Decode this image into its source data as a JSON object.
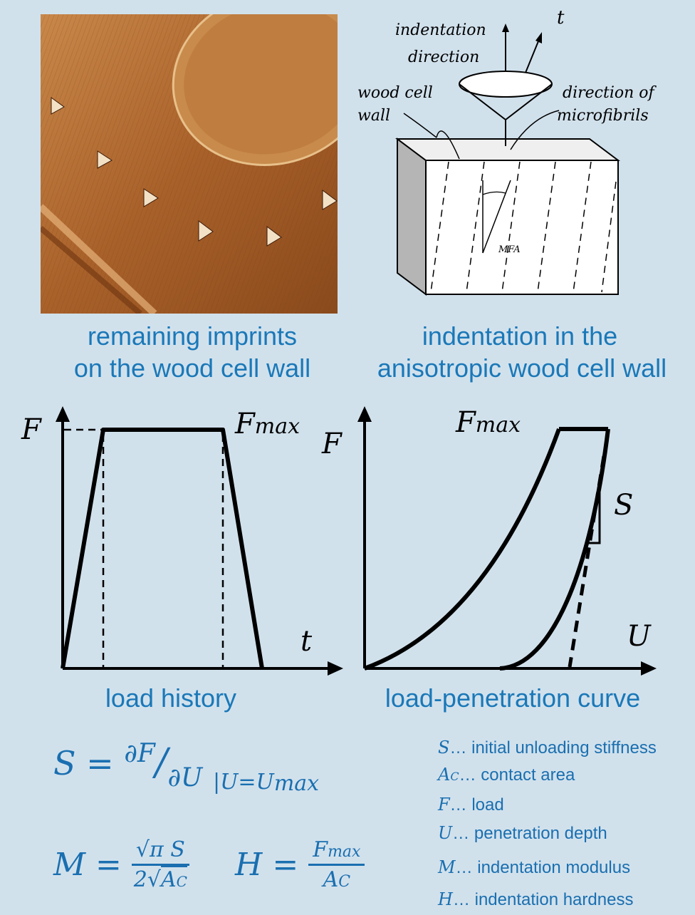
{
  "top_left": {
    "caption_line1": "remaining imprints",
    "caption_line2": "on the wood cell wall"
  },
  "top_right": {
    "label_indentation": "indentation",
    "label_direction": "direction",
    "label_t": "t",
    "label_wood_cell": "wood cell",
    "label_wall": "wall",
    "label_direction_of": "direction of",
    "label_microfibrils": "microfibrils",
    "label_mfa": "MFA",
    "caption_line1": "indentation in the",
    "caption_line2": "anisotropic wood cell wall"
  },
  "load_history": {
    "y_label": "F",
    "x_label": "t",
    "fmax_label": "F",
    "fmax_sub": "max",
    "caption": "load history"
  },
  "load_penetration": {
    "y_label": "F",
    "x_label": "U",
    "fmax_label": "F",
    "fmax_sub": "max",
    "s_label": "S",
    "caption": "load-penetration curve"
  },
  "formulas": {
    "s_lhs": "S =",
    "s_num": "∂F",
    "s_slash": "/",
    "s_den": "∂U",
    "s_eval": "|U=U",
    "s_eval_sub": "max",
    "m_lhs": "M =",
    "m_num": "√π S",
    "m_den_2": "2",
    "m_den_root": "A",
    "m_den_sub": "C",
    "h_lhs": "H =",
    "h_num": "F",
    "h_num_sub": "max",
    "h_den": "A",
    "h_den_sub": "C"
  },
  "legend": [
    {
      "sym": "S",
      "sub": "",
      "text": "… initial unloading stiffness"
    },
    {
      "sym": "A",
      "sub": "C",
      "text": "… contact area"
    },
    {
      "sym": "F",
      "sub": "",
      "text": "… load"
    },
    {
      "sym": "U",
      "sub": "",
      "text": "… penetration depth"
    },
    {
      "sym": "M",
      "sub": "",
      "text": "… indentation modulus"
    },
    {
      "sym": "H",
      "sub": "",
      "text": "… indentation hardness"
    }
  ]
}
